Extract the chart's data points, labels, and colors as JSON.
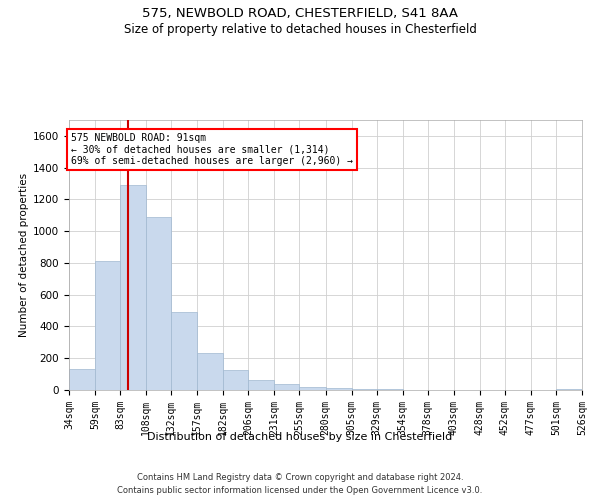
{
  "title1": "575, NEWBOLD ROAD, CHESTERFIELD, S41 8AA",
  "title2": "Size of property relative to detached houses in Chesterfield",
  "xlabel": "Distribution of detached houses by size in Chesterfield",
  "ylabel": "Number of detached properties",
  "footer1": "Contains HM Land Registry data © Crown copyright and database right 2024.",
  "footer2": "Contains public sector information licensed under the Open Government Licence v3.0.",
  "annotation_line1": "575 NEWBOLD ROAD: 91sqm",
  "annotation_line2": "← 30% of detached houses are smaller (1,314)",
  "annotation_line3": "69% of semi-detached houses are larger (2,960) →",
  "bar_color": "#c9d9ed",
  "bar_edge_color": "#a0b8d0",
  "vline_color": "#cc0000",
  "vline_x": 91,
  "bin_edges": [
    34,
    59,
    83,
    108,
    132,
    157,
    182,
    206,
    231,
    255,
    280,
    305,
    329,
    354,
    378,
    403,
    428,
    452,
    477,
    501,
    526
  ],
  "bin_heights": [
    130,
    810,
    1290,
    1090,
    490,
    235,
    125,
    65,
    35,
    22,
    15,
    8,
    5,
    3,
    2,
    0,
    0,
    0,
    0,
    8
  ],
  "ylim": [
    0,
    1700
  ],
  "yticks": [
    0,
    200,
    400,
    600,
    800,
    1000,
    1200,
    1400,
    1600
  ],
  "grid_color": "#d0d0d0",
  "title1_fontsize": 9.5,
  "title2_fontsize": 8.5,
  "ylabel_fontsize": 7.5,
  "xlabel_fontsize": 8,
  "tick_fontsize": 7,
  "footer_fontsize": 6,
  "ann_fontsize": 7
}
